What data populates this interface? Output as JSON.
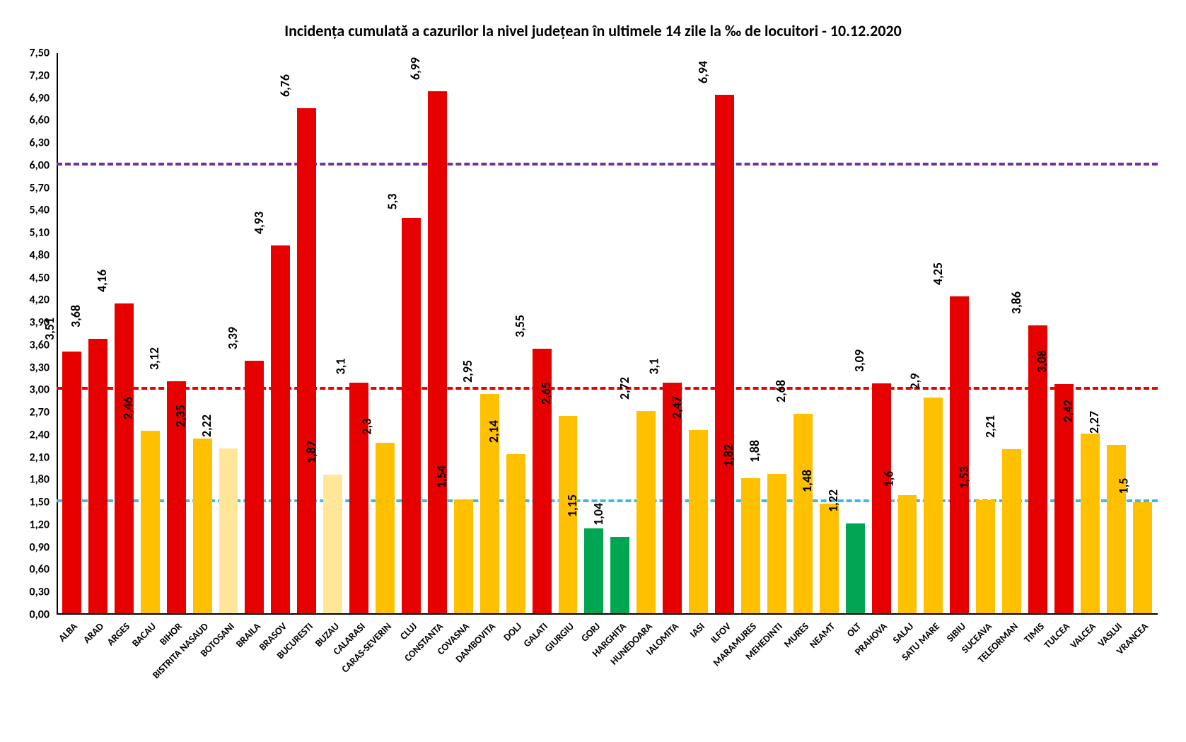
{
  "chart": {
    "type": "bar",
    "title": "Incidența cumulată a cazurilor la nivel județean în ultimele 14 zile la ‰ de locuitori - 10.12.2020",
    "title_fontsize": 22,
    "title_color": "#000000",
    "background_color": "#ffffff",
    "y": {
      "min": 0,
      "max": 7.5,
      "step": 0.3,
      "ticks": [
        "0,00",
        "0,30",
        "0,60",
        "0,90",
        "1,20",
        "1,50",
        "1,80",
        "2,10",
        "2,40",
        "2,70",
        "3,00",
        "3,30",
        "3,60",
        "3,90",
        "4,20",
        "4,50",
        "4,80",
        "5,10",
        "5,40",
        "5,70",
        "6,00",
        "6,30",
        "6,60",
        "6,90",
        "7,20",
        "7,50"
      ],
      "label_fontsize": 16,
      "label_color": "#000000"
    },
    "x": {
      "label_fontsize": 14,
      "label_color": "#000000",
      "rotation": -45
    },
    "thresholds": [
      {
        "value": 1.5,
        "color": "#33bbee"
      },
      {
        "value": 3.0,
        "color": "#ee0000"
      },
      {
        "value": 6.0,
        "color": "#7030a0"
      }
    ],
    "threshold_dash_width": 4,
    "bar_label_fontsize": 18,
    "colors": {
      "red": "#e60000",
      "yellow": "#ffc000",
      "green": "#00a651",
      "yellow_light": "#ffe699"
    },
    "bars": [
      {
        "label": "ALBA",
        "value": 3.51,
        "display": "3,51",
        "color": "red"
      },
      {
        "label": "ARAD",
        "value": 3.68,
        "display": "3,68",
        "color": "red"
      },
      {
        "label": "ARGES",
        "value": 4.16,
        "display": "4,16",
        "color": "red"
      },
      {
        "label": "BACAU",
        "value": 2.46,
        "display": "2,46",
        "color": "yellow"
      },
      {
        "label": "BIHOR",
        "value": 3.12,
        "display": "3,12",
        "color": "red"
      },
      {
        "label": "BISTRITA NASAUD",
        "value": 2.35,
        "display": "2,35",
        "color": "yellow"
      },
      {
        "label": "BOTOSANI",
        "value": 2.22,
        "display": "2,22",
        "color": "yellow_light"
      },
      {
        "label": "BRAILA",
        "value": 3.39,
        "display": "3,39",
        "color": "red"
      },
      {
        "label": "BRASOV",
        "value": 4.93,
        "display": "4,93",
        "color": "red"
      },
      {
        "label": "BUCURESTI",
        "value": 6.76,
        "display": "6,76",
        "color": "red"
      },
      {
        "label": "BUZAU",
        "value": 1.87,
        "display": "1,87",
        "color": "yellow_light"
      },
      {
        "label": "CALARASI",
        "value": 3.1,
        "display": "3,1",
        "color": "red"
      },
      {
        "label": "CARAS-SEVERIN",
        "value": 2.3,
        "display": "2,3",
        "color": "yellow"
      },
      {
        "label": "CLUJ",
        "value": 5.3,
        "display": "5,3",
        "color": "red"
      },
      {
        "label": "CONSTANTA",
        "value": 6.99,
        "display": "6,99",
        "color": "red"
      },
      {
        "label": "COVASNA",
        "value": 1.54,
        "display": "1,54",
        "color": "yellow"
      },
      {
        "label": "DAMBOVITA",
        "value": 2.95,
        "display": "2,95",
        "color": "yellow"
      },
      {
        "label": "DOLJ",
        "value": 2.14,
        "display": "2,14",
        "color": "yellow"
      },
      {
        "label": "GALATI",
        "value": 3.55,
        "display": "3,55",
        "color": "red"
      },
      {
        "label": "GIURGIU",
        "value": 2.65,
        "display": "2,65",
        "color": "yellow"
      },
      {
        "label": "GORJ",
        "value": 1.15,
        "display": "1,15",
        "color": "green"
      },
      {
        "label": "HARGHITA",
        "value": 1.04,
        "display": "1,04",
        "color": "green"
      },
      {
        "label": "HUNEDOARA",
        "value": 2.72,
        "display": "2,72",
        "color": "yellow"
      },
      {
        "label": "IALOMITA",
        "value": 3.1,
        "display": "3,1",
        "color": "red"
      },
      {
        "label": "IASI",
        "value": 2.47,
        "display": "2,47",
        "color": "yellow"
      },
      {
        "label": "ILFOV",
        "value": 6.94,
        "display": "6,94",
        "color": "red"
      },
      {
        "label": "MARAMURES",
        "value": 1.82,
        "display": "1,82",
        "color": "yellow"
      },
      {
        "label": "MEHEDINTI",
        "value": 1.88,
        "display": "1,88",
        "color": "yellow"
      },
      {
        "label": "MURES",
        "value": 2.68,
        "display": "2,68",
        "color": "yellow"
      },
      {
        "label": "NEAMT",
        "value": 1.48,
        "display": "1,48",
        "color": "yellow"
      },
      {
        "label": "OLT",
        "value": 1.22,
        "display": "1,22",
        "color": "green"
      },
      {
        "label": "PRAHOVA",
        "value": 3.09,
        "display": "3,09",
        "color": "red"
      },
      {
        "label": "SALAJ",
        "value": 1.6,
        "display": "1,6",
        "color": "yellow"
      },
      {
        "label": "SATU MARE",
        "value": 2.9,
        "display": "2,9",
        "color": "yellow"
      },
      {
        "label": "SIBIU",
        "value": 4.25,
        "display": "4,25",
        "color": "red"
      },
      {
        "label": "SUCEAVA",
        "value": 1.53,
        "display": "1,53",
        "color": "yellow"
      },
      {
        "label": "TELEORMAN",
        "value": 2.21,
        "display": "2,21",
        "color": "yellow"
      },
      {
        "label": "TIMIS",
        "value": 3.86,
        "display": "3,86",
        "color": "red"
      },
      {
        "label": "TULCEA",
        "value": 3.08,
        "display": "3,08",
        "color": "red"
      },
      {
        "label": "VALCEA",
        "value": 2.42,
        "display": "2,42",
        "color": "yellow"
      },
      {
        "label": "VASLUI",
        "value": 2.27,
        "display": "2,27",
        "color": "yellow"
      },
      {
        "label": "VRANCEA",
        "value": 1.5,
        "display": "1,5",
        "color": "yellow"
      }
    ]
  }
}
